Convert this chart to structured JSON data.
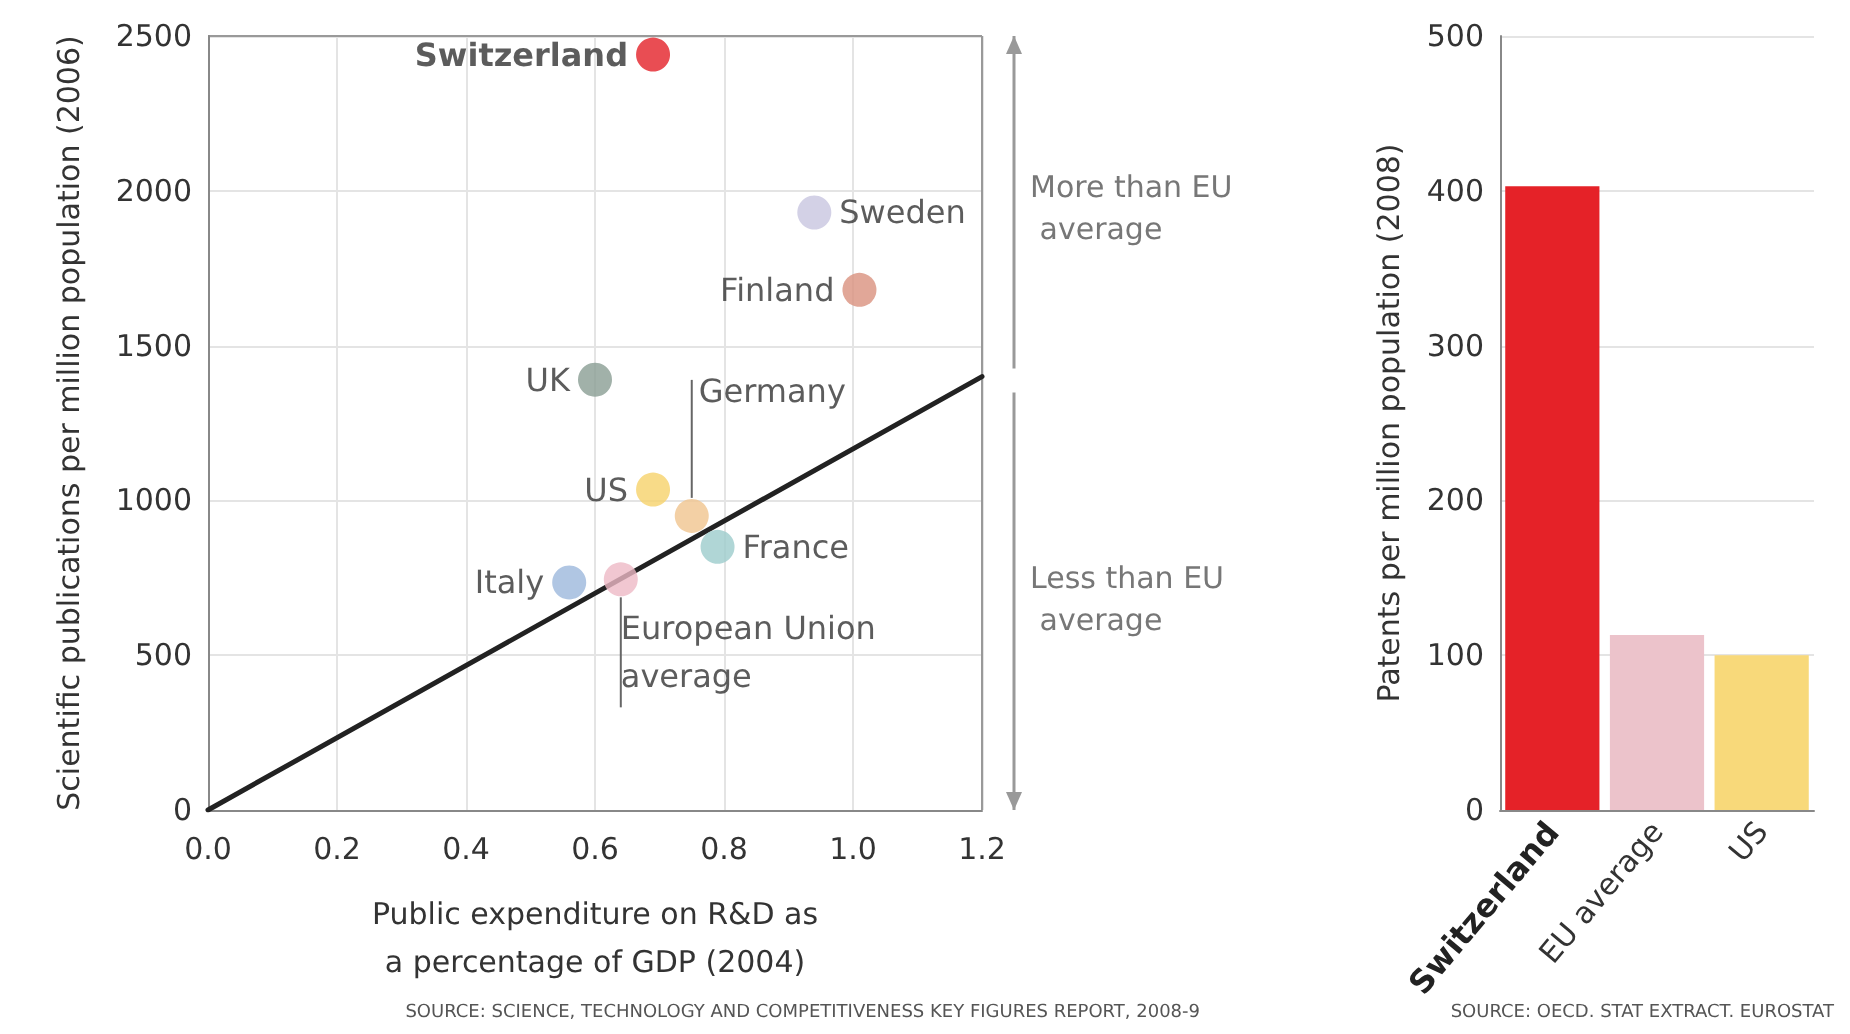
{
  "chart_data": [
    {
      "type": "scatter",
      "xlabel": "Public expenditure on R&D as a percentage of GDP (2004)",
      "ylabel": "Scientific publications per million population (2006)",
      "xlim": [
        0,
        1.2
      ],
      "xticks": [
        {
          "value": 0,
          "label": "0.0"
        },
        0.2,
        0.4,
        0.6,
        0.8,
        {
          "value": 1,
          "label": "1.0"
        },
        1.2
      ],
      "ylim": [
        0,
        2500
      ],
      "yticks": [
        0,
        500,
        1000,
        1500,
        2000,
        2500
      ],
      "grid": true,
      "legend": false,
      "marker": "circle",
      "annotations": [
        "More than EU average",
        "Less than EU average",
        "SOURCE: SCIENCE, TECHNOLOGY AND COMPETITIVENESS KEY FIGURES REPORT, 2008-9"
      ],
      "series": [
        {
          "name": "Switzerland",
          "color": "#e32028",
          "x": [
            0.69
          ],
          "values": [
            2440
          ]
        },
        {
          "name": "Sweden",
          "color": "#c8c6e0",
          "x": [
            0.94
          ],
          "values": [
            1930
          ]
        },
        {
          "name": "Finland",
          "color": "#d9917e",
          "x": [
            1.01
          ],
          "values": [
            1680
          ]
        },
        {
          "name": "UK",
          "color": "#8a9e94",
          "x": [
            0.6
          ],
          "values": [
            1390
          ]
        },
        {
          "name": "Germany",
          "color": "#f0c48e",
          "x": [
            0.75
          ],
          "values": [
            950
          ]
        },
        {
          "name": "US",
          "color": "#f6d26a",
          "x": [
            0.69
          ],
          "values": [
            1035
          ]
        },
        {
          "name": "France",
          "color": "#9ccccc",
          "x": [
            0.79
          ],
          "values": [
            850
          ]
        },
        {
          "name": "Italy",
          "color": "#9cb8dc",
          "x": [
            0.56
          ],
          "values": [
            735
          ]
        },
        {
          "name": "European Union average",
          "color": "#eeb9c6",
          "x": [
            0.64
          ],
          "values": [
            745
          ]
        },
        {
          "type": "line",
          "color": "#222222",
          "marker": "none",
          "x": [
            0,
            1.2
          ],
          "values": [
            0,
            1400
          ]
        }
      ]
    },
    {
      "type": "bar",
      "ylabel": "Patents per million population (2008)",
      "categories": [
        "Switzerland",
        "EU average",
        "US"
      ],
      "values": [
        403,
        113,
        100
      ],
      "colors": [
        "#e52228",
        "#ecc3cb",
        "#f8d97a"
      ],
      "ylim": [
        0,
        500
      ],
      "yticks": [
        0,
        100,
        200,
        300,
        400,
        500
      ],
      "grid": "y",
      "annotations": [
        "SOURCE: OECD. STAT EXTRACT. EUROSTAT"
      ]
    }
  ]
}
